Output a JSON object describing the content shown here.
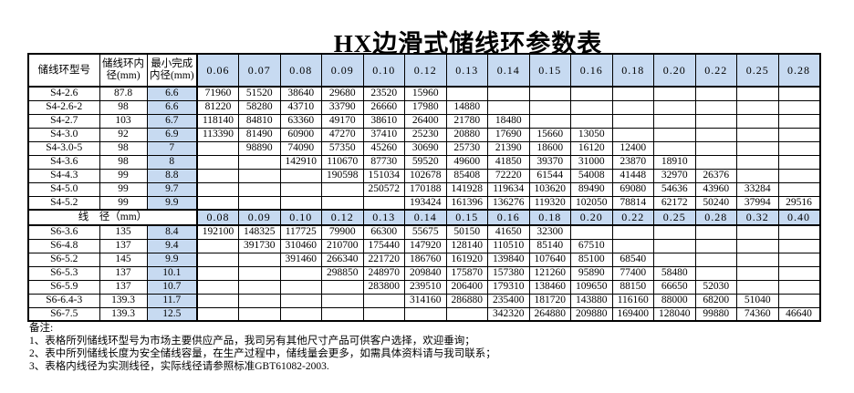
{
  "title": "HX边滑式储线环参数表",
  "colors": {
    "header_fill": "#c7daf1",
    "border": "#000000"
  },
  "table": {
    "headers": {
      "model": "储线环型号",
      "inner_diameter": "储线环内径(mm)",
      "min_finished_diameter": "最小完成内径(mm)"
    },
    "s4_wire_sizes": [
      "0.06",
      "0.07",
      "0.08",
      "0.09",
      "0.10",
      "0.12",
      "0.13",
      "0.14",
      "0.15",
      "0.16",
      "0.18",
      "0.20",
      "0.22",
      "0.25",
      "0.28"
    ],
    "separator_label": "线　径（mm）",
    "s6_wire_sizes": [
      "0.08",
      "0.09",
      "0.10",
      "0.12",
      "0.13",
      "0.14",
      "0.15",
      "0.16",
      "0.18",
      "0.20",
      "0.22",
      "0.25",
      "0.28",
      "0.32",
      "0.40"
    ],
    "s4_rows": [
      {
        "model": "S4-2.6",
        "inner": "87.8",
        "min": "6.6",
        "values": [
          "71960",
          "51520",
          "38640",
          "29680",
          "23520",
          "15960",
          "",
          "",
          "",
          "",
          "",
          "",
          "",
          "",
          ""
        ]
      },
      {
        "model": "S4-2.6-2",
        "inner": "98",
        "min": "6.6",
        "values": [
          "81220",
          "58280",
          "43710",
          "33790",
          "26660",
          "17980",
          "14880",
          "",
          "",
          "",
          "",
          "",
          "",
          "",
          ""
        ]
      },
      {
        "model": "S4-2.7",
        "inner": "103",
        "min": "6.7",
        "values": [
          "118140",
          "84810",
          "63360",
          "49170",
          "38610",
          "26400",
          "21780",
          "18480",
          "",
          "",
          "",
          "",
          "",
          "",
          ""
        ]
      },
      {
        "model": "S4-3.0",
        "inner": "92",
        "min": "6.9",
        "values": [
          "113390",
          "81490",
          "60900",
          "47270",
          "37410",
          "25230",
          "20880",
          "17690",
          "15660",
          "13050",
          "",
          "",
          "",
          "",
          ""
        ]
      },
      {
        "model": "S4-3.0-5",
        "inner": "98",
        "min": "7",
        "values": [
          "",
          "98890",
          "74090",
          "57350",
          "45260",
          "30690",
          "25730",
          "21390",
          "18600",
          "16120",
          "12400",
          "",
          "",
          "",
          ""
        ]
      },
      {
        "model": "S4-3.6",
        "inner": "98",
        "min": "8",
        "values": [
          "",
          "",
          "142910",
          "110670",
          "87730",
          "59520",
          "49600",
          "41850",
          "39370",
          "31000",
          "23870",
          "18910",
          "",
          "",
          ""
        ]
      },
      {
        "model": "S4-4.3",
        "inner": "99",
        "min": "8.8",
        "values": [
          "",
          "",
          "",
          "190598",
          "151034",
          "102678",
          "85408",
          "72220",
          "61544",
          "54008",
          "41448",
          "32970",
          "26376",
          "",
          ""
        ]
      },
      {
        "model": "S4-5.0",
        "inner": "99",
        "min": "9.7",
        "values": [
          "",
          "",
          "",
          "",
          "250572",
          "170188",
          "141928",
          "119634",
          "103620",
          "89490",
          "69080",
          "54636",
          "43960",
          "33284",
          ""
        ]
      },
      {
        "model": "S4-5.2",
        "inner": "99",
        "min": "9.9",
        "values": [
          "",
          "",
          "",
          "",
          "",
          "193424",
          "161396",
          "136276",
          "119320",
          "102050",
          "78814",
          "62172",
          "50240",
          "37994",
          "29516"
        ]
      }
    ],
    "s6_rows": [
      {
        "model": "S6-3.6",
        "inner": "135",
        "min": "8.4",
        "values": [
          "192100",
          "148325",
          "117725",
          "79900",
          "66300",
          "55675",
          "50150",
          "41650",
          "32300",
          "",
          "",
          "",
          "",
          "",
          ""
        ]
      },
      {
        "model": "S6-4.8",
        "inner": "137",
        "min": "9.4",
        "values": [
          "",
          "391730",
          "310460",
          "210700",
          "175440",
          "147920",
          "128140",
          "110510",
          "85140",
          "67510",
          "",
          "",
          "",
          "",
          ""
        ]
      },
      {
        "model": "S6-5.2",
        "inner": "145",
        "min": "9.9",
        "values": [
          "",
          "",
          "391460",
          "266340",
          "221720",
          "186760",
          "161920",
          "139840",
          "107640",
          "85100",
          "68540",
          "",
          "",
          "",
          ""
        ]
      },
      {
        "model": "S6-5.3",
        "inner": "137",
        "min": "10.1",
        "values": [
          "",
          "",
          "",
          "298850",
          "248970",
          "209840",
          "175870",
          "157380",
          "121260",
          "95890",
          "77400",
          "58480",
          "",
          "",
          ""
        ]
      },
      {
        "model": "S6-5.9",
        "inner": "137",
        "min": "10.7",
        "values": [
          "",
          "",
          "",
          "",
          "283800",
          "239510",
          "206400",
          "179310",
          "138460",
          "109650",
          "88150",
          "66650",
          "52030",
          "",
          ""
        ]
      },
      {
        "model": "S6-6.4-3",
        "inner": "139.3",
        "min": "11.7",
        "values": [
          "",
          "",
          "",
          "",
          "",
          "314160",
          "286880",
          "235400",
          "181720",
          "143880",
          "116160",
          "88000",
          "68200",
          "51040",
          ""
        ]
      },
      {
        "model": "S6-7.5",
        "inner": "139.3",
        "min": "12.5",
        "values": [
          "",
          "",
          "",
          "",
          "",
          "",
          "",
          "342320",
          "264880",
          "209880",
          "169400",
          "128040",
          "99880",
          "74360",
          "46640"
        ]
      }
    ]
  },
  "notes": {
    "heading": "备注:",
    "items": [
      "1、表格所列储线环型号为市场主要供应产品，我司另有其他尺寸产品可供客户选择，欢迎垂询；",
      "2、表中所列储线长度为安全储线容量，在生产过程中，储线量会更多，如需具体资料请与我司联系；",
      "3、表格内线径为实测线径，实际线径请参照标准GBT61082-2003."
    ]
  }
}
